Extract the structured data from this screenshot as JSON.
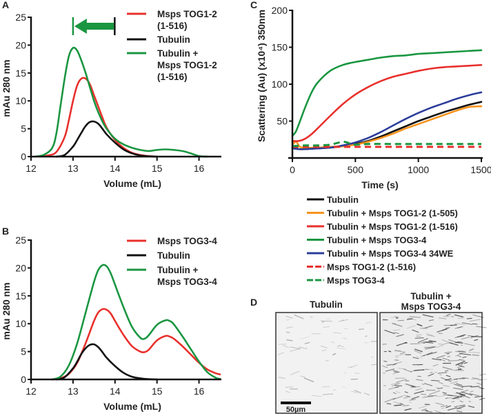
{
  "chart_data": [
    {
      "panel": "A",
      "type": "line",
      "xlabel": "Volume (mL)",
      "ylabel": "mAu 280 nm",
      "xlim": [
        12,
        16.5
      ],
      "ylim": [
        0,
        25
      ],
      "xticks": [
        "12",
        "13",
        "14",
        "15",
        "16"
      ],
      "yticks": [
        "0",
        "5",
        "10",
        "15",
        "20",
        "25"
      ],
      "legend_position": "top-right",
      "annotation": {
        "type": "arrow",
        "direction": "left",
        "from_x": 13.5,
        "to_x": 13.0,
        "color": "#1a9641",
        "meaning": "peak shift"
      },
      "series": [
        {
          "name": "Msps TOG1-2 (1-516)",
          "color": "#e8302c",
          "style": "solid",
          "x": [
            12.2,
            12.4,
            12.6,
            12.8,
            12.9,
            13.0,
            13.1,
            13.2,
            13.3,
            13.4,
            13.5,
            13.6,
            13.7,
            13.8,
            14.0,
            14.2,
            14.4,
            14.6,
            14.8,
            15.0
          ],
          "y": [
            0,
            0.2,
            0.8,
            3.5,
            6.5,
            10,
            12.8,
            14,
            14,
            13,
            11,
            9,
            7,
            5.2,
            3,
            1.6,
            0.7,
            0.3,
            0.1,
            0
          ]
        },
        {
          "name": "Tubulin",
          "color": "#111111",
          "style": "solid",
          "x": [
            12.6,
            12.8,
            13.0,
            13.1,
            13.2,
            13.3,
            13.4,
            13.5,
            13.6,
            13.7,
            13.8,
            14.0,
            14.2,
            14.4,
            14.6,
            14.8,
            15.0
          ],
          "y": [
            0,
            0.3,
            1.8,
            3,
            4.3,
            5.5,
            6.2,
            6.3,
            5.9,
            5,
            4,
            2.5,
            1.3,
            0.6,
            0.2,
            0.05,
            0
          ]
        },
        {
          "name": "Tubulin + Msps TOG1-2 (1-516)",
          "color": "#1a9641",
          "style": "solid",
          "x": [
            12.1,
            12.3,
            12.5,
            12.6,
            12.7,
            12.8,
            12.9,
            13.0,
            13.1,
            13.2,
            13.3,
            13.4,
            13.5,
            13.6,
            13.7,
            13.8,
            14.0,
            14.2,
            14.4,
            14.6,
            14.8,
            15.0,
            15.2,
            15.4,
            15.6,
            15.8,
            16.0,
            16.2
          ],
          "y": [
            0,
            0.3,
            1.5,
            4,
            9,
            14,
            18,
            19.5,
            19,
            17.2,
            15,
            12.5,
            10,
            8,
            6.3,
            5,
            3.2,
            2.2,
            1.6,
            1.2,
            1.0,
            1.2,
            1.3,
            1.2,
            1.0,
            0.6,
            0.1,
            0
          ]
        }
      ]
    },
    {
      "panel": "B",
      "type": "line",
      "xlabel": "Volume (mL)",
      "ylabel": "mAu 280 nm",
      "xlim": [
        12,
        16.5
      ],
      "ylim": [
        0,
        25
      ],
      "xticks": [
        "12",
        "13",
        "14",
        "15",
        "16"
      ],
      "yticks": [
        "0",
        "5",
        "10",
        "15",
        "20",
        "25"
      ],
      "legend_position": "top-right",
      "series": [
        {
          "name": "Msps TOG3-4",
          "color": "#e8302c",
          "style": "solid",
          "x": [
            12.5,
            12.7,
            12.9,
            13.1,
            13.3,
            13.5,
            13.6,
            13.7,
            13.8,
            13.9,
            14.0,
            14.2,
            14.4,
            14.6,
            14.7,
            14.8,
            15.0,
            15.2,
            15.3,
            15.4,
            15.6,
            15.8,
            16.0,
            16.2,
            16.4,
            16.5
          ],
          "y": [
            0,
            0.2,
            1,
            3,
            6.5,
            10.5,
            12,
            12.6,
            12.5,
            11.8,
            10.5,
            8,
            6,
            5,
            4.9,
            5.3,
            7,
            7.8,
            7.7,
            7.3,
            6,
            4.5,
            3,
            1.8,
            1.1,
            0.9
          ]
        },
        {
          "name": "Tubulin",
          "color": "#111111",
          "style": "solid",
          "x": [
            12.6,
            12.8,
            13.0,
            13.1,
            13.2,
            13.3,
            13.4,
            13.5,
            13.6,
            13.7,
            13.8,
            14.0,
            14.2,
            14.4,
            14.6,
            14.8,
            15.0
          ],
          "y": [
            0,
            0.4,
            2,
            3.2,
            4.6,
            5.6,
            6.2,
            6.3,
            5.8,
            4.9,
            3.9,
            2.4,
            1.2,
            0.5,
            0.2,
            0.05,
            0
          ]
        },
        {
          "name": "Tubulin + Msps TOG3-4",
          "color": "#1a9641",
          "style": "solid",
          "x": [
            12.5,
            12.7,
            12.9,
            13.1,
            13.3,
            13.5,
            13.6,
            13.7,
            13.8,
            13.9,
            14.0,
            14.2,
            14.4,
            14.6,
            14.7,
            14.8,
            15.0,
            15.2,
            15.3,
            15.4,
            15.6,
            15.8,
            16.0,
            16.2,
            16.4,
            16.5
          ],
          "y": [
            0,
            0.5,
            2.5,
            6.5,
            12,
            17.5,
            19.6,
            20.5,
            20.3,
            19,
            17,
            13,
            9.5,
            7.5,
            7.3,
            7.9,
            9.8,
            10.6,
            10.5,
            9.9,
            7.8,
            5.5,
            3.2,
            1.3,
            0.3,
            0.1
          ]
        }
      ]
    },
    {
      "panel": "C",
      "type": "line",
      "xlabel": "Time (s)",
      "ylabel": "Scattering (Au) (x10⁴) 350nm",
      "xlim": [
        0,
        1500
      ],
      "ylim": [
        0,
        200
      ],
      "xticks": [
        "0",
        "500",
        "1000",
        "1500"
      ],
      "yticks": [
        "50",
        "100",
        "150",
        "200"
      ],
      "legend_position": "bottom",
      "series": [
        {
          "name": "Tubulin",
          "color": "#111111",
          "style": "solid",
          "x": [
            0,
            50,
            100,
            200,
            300,
            400,
            500,
            600,
            700,
            800,
            900,
            1000,
            1100,
            1200,
            1300,
            1400,
            1500
          ],
          "y": [
            14,
            12,
            12,
            13,
            14,
            16,
            19,
            23,
            29,
            36,
            43,
            50,
            56,
            62,
            67,
            72,
            76
          ]
        },
        {
          "name": "Tubulin + Msps TOG1-2 (1-505)",
          "color": "#f7941d",
          "style": "solid",
          "x": [
            0,
            30,
            60,
            100,
            200,
            300,
            400,
            500,
            600,
            700,
            800,
            900,
            1000,
            1100,
            1200,
            1300,
            1400,
            1500
          ],
          "y": [
            18,
            22,
            15,
            14,
            14,
            15,
            16,
            18,
            22,
            27,
            33,
            40,
            46,
            52,
            58,
            64,
            69,
            70
          ]
        },
        {
          "name": "Tubulin + Msps TOG1-2 (1-516)",
          "color": "#e8302c",
          "style": "solid",
          "x": [
            0,
            50,
            100,
            150,
            200,
            300,
            400,
            500,
            600,
            700,
            800,
            900,
            1000,
            1100,
            1200,
            1300,
            1400,
            1500
          ],
          "y": [
            23,
            23,
            26,
            32,
            40,
            57,
            73,
            86,
            96,
            104,
            110,
            114,
            118,
            121,
            123,
            124,
            125,
            126
          ]
        },
        {
          "name": "Tubulin + Msps TOG3-4",
          "color": "#1a9641",
          "style": "solid",
          "x": [
            0,
            25,
            50,
            100,
            150,
            200,
            300,
            400,
            500,
            600,
            700,
            800,
            900,
            1000,
            1100,
            1200,
            1300,
            1400,
            1500
          ],
          "y": [
            30,
            35,
            45,
            68,
            88,
            102,
            118,
            126,
            130,
            133,
            136,
            138,
            139,
            141,
            142,
            143,
            144,
            145,
            146
          ]
        },
        {
          "name": "Tubulin + Msps TOG3-4 34WE",
          "color": "#2b3d9a",
          "style": "solid",
          "x": [
            0,
            50,
            100,
            200,
            300,
            400,
            500,
            600,
            700,
            800,
            900,
            1000,
            1100,
            1200,
            1300,
            1400,
            1500
          ],
          "y": [
            13,
            12,
            12,
            13,
            14,
            17,
            21,
            27,
            35,
            44,
            53,
            61,
            68,
            74,
            80,
            85,
            89
          ]
        },
        {
          "name": "Msps TOG1-2 (1-516)",
          "color": "#e8302c",
          "style": "dashed",
          "x": [
            0,
            250,
            500,
            750,
            1000,
            1250,
            1500
          ],
          "y": [
            15,
            15,
            15,
            15,
            15,
            15,
            15
          ]
        },
        {
          "name": "Msps TOG3-4",
          "color": "#1a9641",
          "style": "dashed",
          "x": [
            0,
            100,
            200,
            300,
            400,
            450,
            500,
            600,
            800,
            1000,
            1200,
            1500
          ],
          "y": [
            16,
            17,
            17,
            18,
            22,
            20,
            18,
            19,
            19,
            19,
            19,
            19
          ]
        }
      ]
    }
  ],
  "panels": {
    "A": {
      "label": "A"
    },
    "B": {
      "label": "B"
    },
    "C": {
      "label": "C"
    },
    "D": {
      "label": "D",
      "images": [
        {
          "title_lines": [
            "Tubulin"
          ],
          "description": "sparse microtubule fluorescence, inverted grayscale"
        },
        {
          "title_lines": [
            "Tubulin +",
            "Msps TOG3-4"
          ],
          "description": "dense microtubule fluorescence, inverted grayscale"
        }
      ],
      "scale_bar": "50µm"
    }
  },
  "legends": {
    "A": [
      {
        "lines": [
          "Msps TOG1-2",
          "(1-516)"
        ],
        "color": "#e8302c"
      },
      {
        "lines": [
          "Tubulin"
        ],
        "color": "#111111"
      },
      {
        "lines": [
          "Tubulin +",
          "Msps TOG1-2",
          "(1-516)"
        ],
        "color": "#1a9641"
      }
    ],
    "B": [
      {
        "lines": [
          "Msps TOG3-4"
        ],
        "color": "#e8302c"
      },
      {
        "lines": [
          "Tubulin"
        ],
        "color": "#111111"
      },
      {
        "lines": [
          "Tubulin +",
          "Msps TOG3-4"
        ],
        "color": "#1a9641"
      }
    ]
  }
}
